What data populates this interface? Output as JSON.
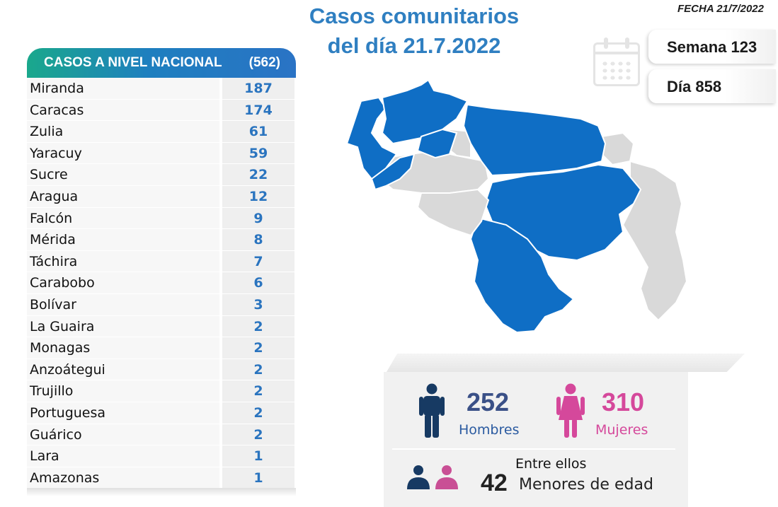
{
  "header": {
    "title_line1": "Casos comunitarios",
    "title_line2": "del día 21.7.2022",
    "fecha": "FECHA 21/7/2022",
    "semana": "Semana 123",
    "dia": "Día 858"
  },
  "table": {
    "header_label": "CASOS A NIVEL NACIONAL",
    "header_total": "(562)",
    "rows": [
      {
        "name": "Miranda",
        "value": "187"
      },
      {
        "name": "Caracas",
        "value": "174"
      },
      {
        "name": "Zulia",
        "value": "61"
      },
      {
        "name": "Yaracuy",
        "value": "59"
      },
      {
        "name": "Sucre",
        "value": "22"
      },
      {
        "name": "Aragua",
        "value": "12"
      },
      {
        "name": "Falcón",
        "value": "9"
      },
      {
        "name": "Mérida",
        "value": "8"
      },
      {
        "name": "Táchira",
        "value": "7"
      },
      {
        "name": "Carabobo",
        "value": "6"
      },
      {
        "name": "Bolívar",
        "value": "3"
      },
      {
        "name": "La Guaira",
        "value": "2"
      },
      {
        "name": "Monagas",
        "value": "2"
      },
      {
        "name": "Anzoátegui",
        "value": "2"
      },
      {
        "name": "Trujillo",
        "value": "2"
      },
      {
        "name": "Portuguesa",
        "value": "2"
      },
      {
        "name": "Guárico",
        "value": "2"
      },
      {
        "name": "Lara",
        "value": "1"
      },
      {
        "name": "Amazonas",
        "value": "1"
      }
    ]
  },
  "stats": {
    "hombres_value": "252",
    "hombres_label": "Hombres",
    "mujeres_value": "310",
    "mujeres_label": "Mujeres",
    "entre_ellos": "Entre ellos",
    "menores_value": "42",
    "menores_label": "Menores de edad"
  },
  "colors": {
    "accent_blue": "#2f7fc1",
    "map_blue": "#0f6ec5",
    "map_gray": "#d9d9d9",
    "men_navy": "#173a63",
    "women_pink": "#d5489b"
  },
  "icons": [
    "calendar-icon",
    "man-icon",
    "woman-icon",
    "group-icon"
  ]
}
